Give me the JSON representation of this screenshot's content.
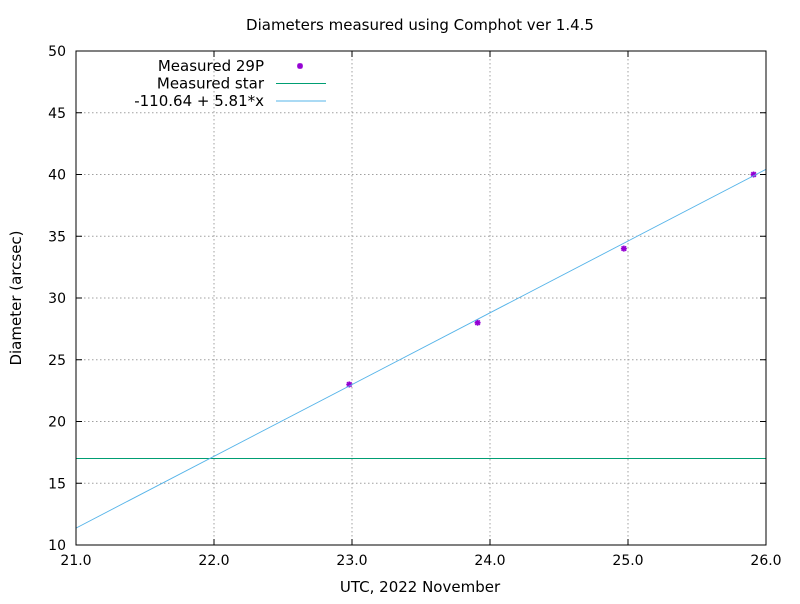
{
  "chart_data": {
    "type": "scatter",
    "title": "Diameters measured using Comphot ver 1.4.5",
    "xlabel": "UTC, 2022 November",
    "ylabel": "Diameter (arcsec)",
    "xlim": [
      21.0,
      26.0
    ],
    "ylim": [
      10,
      50
    ],
    "xticks": [
      21.0,
      22.0,
      23.0,
      24.0,
      25.0,
      26.0
    ],
    "xtick_labels": [
      "21.0",
      "22.0",
      "23.0",
      "24.0",
      "25.0",
      "26.0"
    ],
    "yticks": [
      10,
      15,
      20,
      25,
      30,
      35,
      40,
      45,
      50
    ],
    "ytick_labels": [
      "10",
      "15",
      "20",
      "25",
      "30",
      "35",
      "40",
      "45",
      "50"
    ],
    "grid": true,
    "grid_style": "dotted",
    "legend_position": "top-left",
    "series": [
      {
        "name": "Measured 29P",
        "kind": "points",
        "color": "#9400d3",
        "x": [
          22.98,
          23.91,
          24.97,
          25.91
        ],
        "y": [
          23.0,
          28.0,
          34.0,
          40.0
        ]
      },
      {
        "name": "Measured star",
        "kind": "hline",
        "color": "#009e73",
        "y": 17.0
      },
      {
        "name": "-110.64 + 5.81*x",
        "kind": "line",
        "color": "#56b4e9",
        "intercept": -110.64,
        "slope": 5.81
      }
    ]
  }
}
